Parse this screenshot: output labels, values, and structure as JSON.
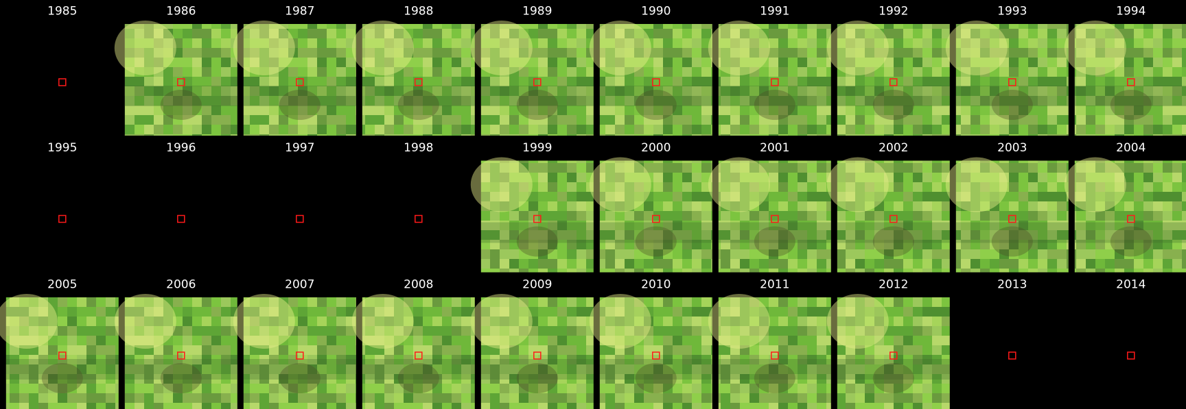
{
  "cells": [
    {
      "year": "1985",
      "image": false
    },
    {
      "year": "1986",
      "image": true
    },
    {
      "year": "1987",
      "image": true
    },
    {
      "year": "1988",
      "image": true
    },
    {
      "year": "1989",
      "image": true
    },
    {
      "year": "1990",
      "image": true
    },
    {
      "year": "1991",
      "image": true
    },
    {
      "year": "1992",
      "image": true
    },
    {
      "year": "1993",
      "image": true
    },
    {
      "year": "1994",
      "image": true
    },
    {
      "year": "1995",
      "image": false
    },
    {
      "year": "1996",
      "image": false
    },
    {
      "year": "1997",
      "image": false
    },
    {
      "year": "1998",
      "image": false
    },
    {
      "year": "1999",
      "image": true
    },
    {
      "year": "2000",
      "image": true
    },
    {
      "year": "2001",
      "image": true
    },
    {
      "year": "2002",
      "image": true
    },
    {
      "year": "2003",
      "image": true
    },
    {
      "year": "2004",
      "image": true
    },
    {
      "year": "2005",
      "image": true
    },
    {
      "year": "2006",
      "image": true
    },
    {
      "year": "2007",
      "image": true
    },
    {
      "year": "2008",
      "image": true
    },
    {
      "year": "2009",
      "image": true
    },
    {
      "year": "2010",
      "image": true
    },
    {
      "year": "2011",
      "image": true
    },
    {
      "year": "2012",
      "image": true
    },
    {
      "year": "2013",
      "image": false
    },
    {
      "year": "2014",
      "image": false
    }
  ]
}
